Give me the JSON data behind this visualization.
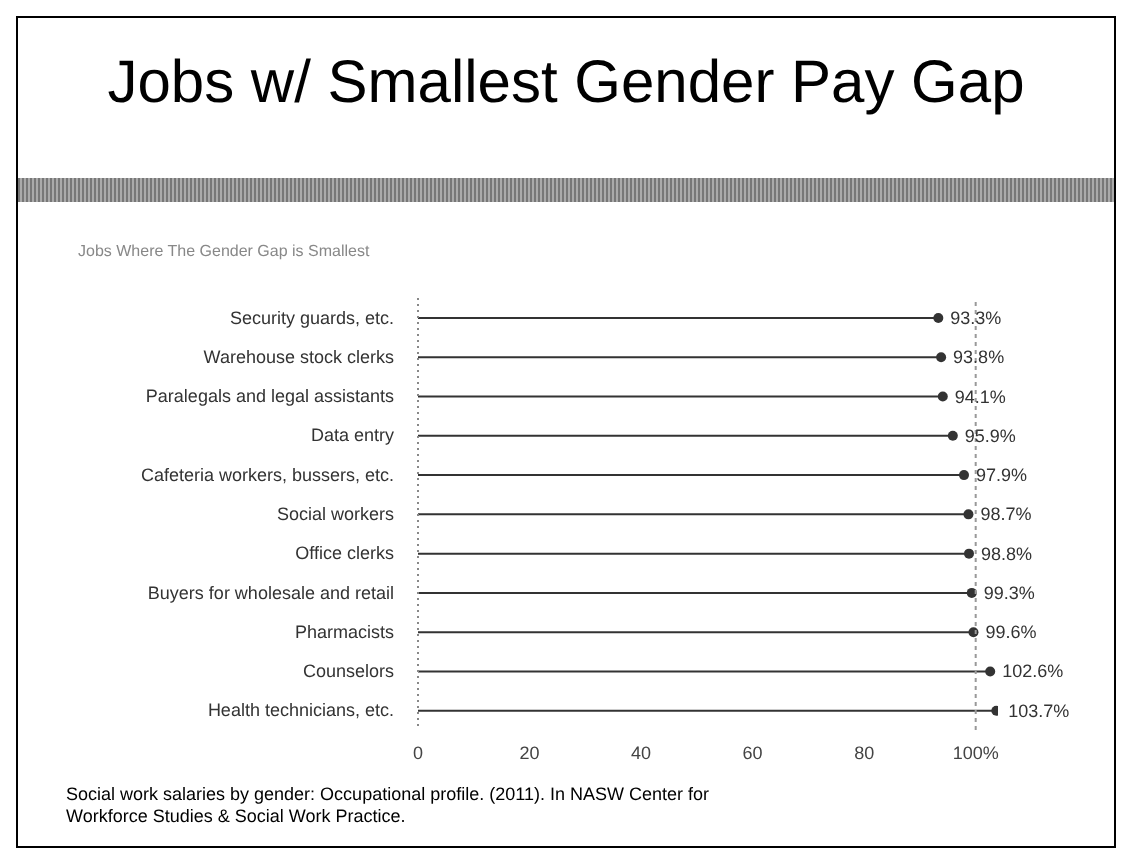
{
  "chart_data": {
    "type": "lollipop",
    "orientation": "horizontal",
    "title": "Jobs w/ Smallest Gender Pay Gap",
    "subtitle": "Jobs Where The Gender Gap is Smallest",
    "categories": [
      "Security guards, etc.",
      "Warehouse stock clerks",
      "Paralegals and legal assistants",
      "Data entry",
      "Cafeteria workers, bussers, etc.",
      "Social workers",
      "Office clerks",
      "Buyers for wholesale and retail",
      "Pharmacists",
      "Counselors",
      "Health technicians, etc."
    ],
    "values": [
      93.3,
      93.8,
      94.1,
      95.9,
      97.9,
      98.7,
      98.8,
      99.3,
      99.6,
      102.6,
      103.7
    ],
    "value_labels": [
      "93.3%",
      "93.8%",
      "94.1%",
      "95.9%",
      "97.9%",
      "98.7%",
      "98.8%",
      "99.3%",
      "99.6%",
      "102.6%",
      "103.7%"
    ],
    "color": "#333333",
    "marker": "circle",
    "xlim": [
      0,
      104
    ],
    "xticks": [
      0,
      20,
      40,
      60,
      80,
      {
        "value": 100,
        "label": "100%"
      }
    ],
    "ref_lines": [
      {
        "axis": "x",
        "value": 100,
        "color": "#999999",
        "line_style": "dotted"
      }
    ],
    "annotations": [
      "Social work salaries by gender: Occupational profile. (2011). In NASW Center for Workforce Studies & Social Work Practice."
    ]
  }
}
